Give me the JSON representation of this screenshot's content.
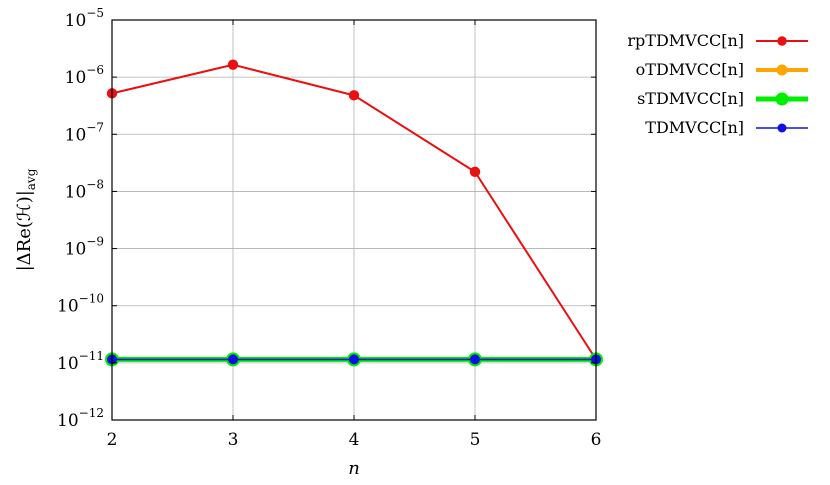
{
  "chart_data": {
    "type": "line",
    "xlabel": "n",
    "ylabel": "|ΔRe(ℋ)|",
    "ylabel_subscript": "avg",
    "x": [
      2,
      3,
      4,
      5,
      6
    ],
    "xlim": [
      2,
      6
    ],
    "ylim": [
      1e-12,
      1e-05
    ],
    "yscale": "log",
    "grid": true,
    "legend_position": "outside-right",
    "x_ticks": [
      "2",
      "3",
      "4",
      "5",
      "6"
    ],
    "y_ticks": [
      {
        "base": "10",
        "exp": "−5"
      },
      {
        "base": "10",
        "exp": "−6"
      },
      {
        "base": "10",
        "exp": "−7"
      },
      {
        "base": "10",
        "exp": "−8"
      },
      {
        "base": "10",
        "exp": "−9"
      },
      {
        "base": "10",
        "exp": "−10"
      },
      {
        "base": "10",
        "exp": "−11"
      },
      {
        "base": "10",
        "exp": "−12"
      }
    ],
    "series": [
      {
        "name": "rpTDMVCC[n]",
        "color": "#e81010",
        "values": [
          5.2e-07,
          1.65e-06,
          4.8e-07,
          2.2e-08,
          1.15e-11
        ]
      },
      {
        "name": "oTDMVCC[n]",
        "color": "#ffa500",
        "values": [
          1.15e-11,
          1.15e-11,
          1.15e-11,
          1.15e-11,
          1.15e-11
        ]
      },
      {
        "name": "sTDMVCC[n]",
        "color": "#00ee00",
        "values": [
          1.15e-11,
          1.15e-11,
          1.15e-11,
          1.15e-11,
          1.15e-11
        ]
      },
      {
        "name": "TDMVCC[n]",
        "color": "#1010e0",
        "values": [
          1.15e-11,
          1.15e-11,
          1.15e-11,
          1.15e-11,
          1.15e-11
        ]
      }
    ]
  }
}
